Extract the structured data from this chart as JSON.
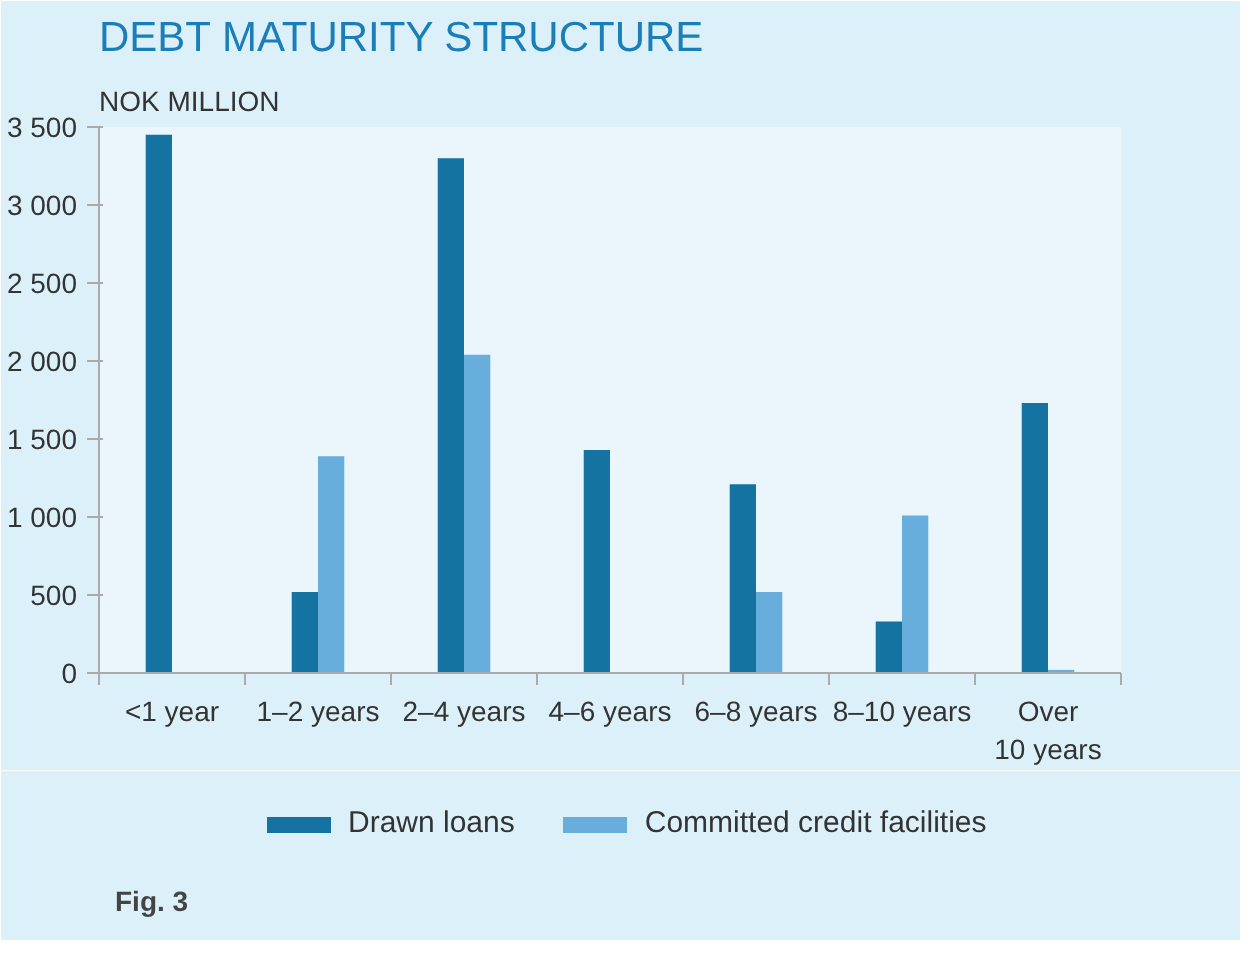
{
  "chart_data": {
    "type": "bar",
    "title": "DEBT MATURITY STRUCTURE",
    "ylabel": "NOK MILLION",
    "categories": [
      "<1 year",
      "1–2 years",
      "2–4 years",
      "4–6 years",
      "6–8 years",
      "8–10 years",
      "Over\n10 years"
    ],
    "series": [
      {
        "name": "Drawn loans",
        "color": "#1473a1",
        "values": [
          3450,
          520,
          3300,
          1430,
          1210,
          330,
          1730
        ]
      },
      {
        "name": "Committed credit facilities",
        "color": "#67aedd",
        "values": [
          null,
          1390,
          2040,
          null,
          520,
          1010,
          20
        ]
      }
    ],
    "ylim": [
      0,
      3500
    ],
    "yticks": [
      0,
      500,
      {
        "value": 1000,
        "label": "1 000"
      },
      {
        "value": 1500,
        "label": "1 500"
      },
      {
        "value": 2000,
        "label": "2 000"
      },
      {
        "value": 2500,
        "label": "2 500"
      },
      {
        "value": 3000,
        "label": "3 000"
      },
      {
        "value": 3500,
        "label": "3 500"
      }
    ],
    "grid": false,
    "legend": "bottom",
    "annotations": [
      "Fig. 3"
    ]
  }
}
